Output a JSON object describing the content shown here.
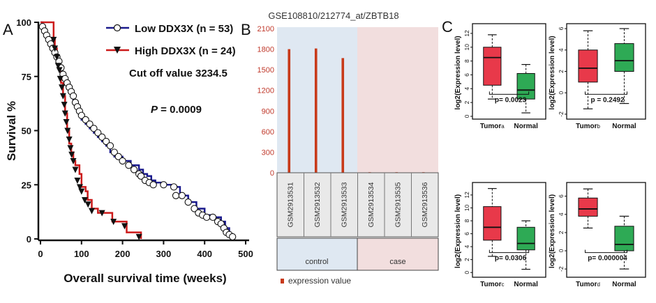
{
  "chart_data": [
    {
      "type": "line",
      "panel_label": "A",
      "title": "",
      "xlabel": "Overall survival time (weeks)",
      "ylabel": "Survival %",
      "xlim": [
        0,
        500
      ],
      "ylim": [
        0,
        100
      ],
      "x_ticks": [
        "0",
        "100",
        "200",
        "300",
        "400",
        "500"
      ],
      "y_ticks": [
        "0",
        "25",
        "50",
        "75",
        "100"
      ],
      "legend": [
        {
          "name": "Low  DDX3X (n = 53)",
          "color": "#1a1a8c",
          "marker": "open-circle"
        },
        {
          "name": "High  DDX3X (n = 24)",
          "color": "#cc1a1a",
          "marker": "down-triangle"
        }
      ],
      "annotations": {
        "cutoff": "Cut off value 3234.5",
        "p_label": "P",
        "p_value": " = 0.0009"
      },
      "series": [
        {
          "name": "Low DDX3X",
          "steps": [
            [
              0,
              100
            ],
            [
              5,
              98
            ],
            [
              10,
              96
            ],
            [
              15,
              94
            ],
            [
              20,
              92
            ],
            [
              25,
              90
            ],
            [
              30,
              88
            ],
            [
              35,
              86
            ],
            [
              40,
              84
            ],
            [
              45,
              80
            ],
            [
              50,
              76
            ],
            [
              55,
              74
            ],
            [
              60,
              72
            ],
            [
              65,
              70
            ],
            [
              70,
              68
            ],
            [
              75,
              66
            ],
            [
              80,
              63
            ],
            [
              85,
              61
            ],
            [
              90,
              59
            ],
            [
              95,
              57
            ],
            [
              100,
              55
            ],
            [
              110,
              53
            ],
            [
              120,
              51
            ],
            [
              130,
              49
            ],
            [
              140,
              47
            ],
            [
              150,
              45
            ],
            [
              160,
              43
            ],
            [
              170,
              40
            ],
            [
              180,
              38
            ],
            [
              200,
              36
            ],
            [
              220,
              34
            ],
            [
              240,
              32
            ],
            [
              250,
              30
            ],
            [
              260,
              29
            ],
            [
              270,
              27
            ],
            [
              280,
              26
            ],
            [
              300,
              25
            ],
            [
              320,
              24
            ],
            [
              340,
              20
            ],
            [
              360,
              17
            ],
            [
              380,
              14
            ],
            [
              400,
              11
            ],
            [
              420,
              10
            ],
            [
              440,
              8
            ],
            [
              450,
              5
            ],
            [
              460,
              2
            ],
            [
              470,
              0
            ]
          ],
          "markers": [
            [
              5,
              98
            ],
            [
              10,
              96
            ],
            [
              15,
              94
            ],
            [
              20,
              92
            ],
            [
              25,
              90
            ],
            [
              30,
              88
            ],
            [
              35,
              86
            ],
            [
              40,
              84
            ],
            [
              45,
              82
            ],
            [
              50,
              79
            ],
            [
              55,
              76
            ],
            [
              60,
              74
            ],
            [
              65,
              72
            ],
            [
              70,
              70
            ],
            [
              75,
              68
            ],
            [
              80,
              66
            ],
            [
              85,
              63
            ],
            [
              90,
              61
            ],
            [
              95,
              59
            ],
            [
              100,
              57
            ],
            [
              110,
              55
            ],
            [
              120,
              53
            ],
            [
              130,
              51
            ],
            [
              140,
              49
            ],
            [
              150,
              47
            ],
            [
              160,
              45
            ],
            [
              170,
              43
            ],
            [
              180,
              40
            ],
            [
              190,
              38
            ],
            [
              200,
              36
            ],
            [
              215,
              34
            ],
            [
              228,
              32
            ],
            [
              240,
              30
            ],
            [
              245,
              29
            ],
            [
              255,
              27
            ],
            [
              265,
              26
            ],
            [
              275,
              25
            ],
            [
              300,
              25
            ],
            [
              325,
              24
            ],
            [
              330,
              20
            ],
            [
              345,
              20
            ],
            [
              360,
              17
            ],
            [
              375,
              14
            ],
            [
              385,
              12
            ],
            [
              395,
              11
            ],
            [
              405,
              10
            ],
            [
              420,
              10
            ],
            [
              432,
              8
            ],
            [
              440,
              7
            ],
            [
              447,
              5
            ],
            [
              453,
              3
            ],
            [
              460,
              2
            ],
            [
              468,
              1
            ]
          ]
        },
        {
          "name": "High DDX3X",
          "steps": [
            [
              0,
              100
            ],
            [
              30,
              100
            ],
            [
              32,
              92
            ],
            [
              35,
              88
            ],
            [
              40,
              84
            ],
            [
              45,
              80
            ],
            [
              50,
              72
            ],
            [
              55,
              66
            ],
            [
              60,
              58
            ],
            [
              65,
              50
            ],
            [
              70,
              44
            ],
            [
              75,
              40
            ],
            [
              80,
              36
            ],
            [
              85,
              34
            ],
            [
              95,
              30
            ],
            [
              100,
              24
            ],
            [
              110,
              22
            ],
            [
              115,
              18
            ],
            [
              125,
              14
            ],
            [
              140,
              12
            ],
            [
              175,
              8
            ],
            [
              210,
              3
            ],
            [
              240,
              3
            ],
            [
              245,
              0
            ]
          ],
          "markers": [
            [
              32,
              92
            ],
            [
              35,
              88
            ],
            [
              40,
              84
            ],
            [
              43,
              80
            ],
            [
              46,
              78
            ],
            [
              48,
              74
            ],
            [
              52,
              70
            ],
            [
              55,
              66
            ],
            [
              58,
              62
            ],
            [
              60,
              58
            ],
            [
              63,
              54
            ],
            [
              66,
              50
            ],
            [
              70,
              46
            ],
            [
              73,
              42
            ],
            [
              76,
              39
            ],
            [
              80,
              36
            ],
            [
              85,
              32
            ],
            [
              90,
              27
            ],
            [
              96,
              24
            ],
            [
              100,
              22
            ],
            [
              108,
              18
            ],
            [
              116,
              16
            ],
            [
              125,
              13
            ],
            [
              150,
              12
            ],
            [
              178,
              8
            ],
            [
              205,
              6
            ],
            [
              240,
              1
            ]
          ]
        }
      ]
    },
    {
      "type": "bar",
      "panel_label": "B",
      "title": "GSE108810/212774_at/ZBTB18",
      "y_ticks": [
        "0",
        "300",
        "600",
        "900",
        "1200",
        "1500",
        "1800",
        "2100"
      ],
      "ylim": [
        0,
        2100
      ],
      "categories": [
        "GSM2913531",
        "GSM2913532",
        "GSM2913533",
        "GSM2913534",
        "GSM2913535",
        "GSM2913536"
      ],
      "values": [
        1800,
        1810,
        1670,
        8,
        8,
        8
      ],
      "groups": [
        {
          "name": "control",
          "count": 3,
          "color": "#dfe8f2"
        },
        {
          "name": "case",
          "count": 3,
          "color": "#f2dede"
        }
      ],
      "bar_color": "#c83a1a",
      "legend": "expression value"
    },
    {
      "type": "box",
      "panel_label": "C",
      "ylabel": "log2(Expression level)",
      "panels": [
        {
          "categories": [
            "Tumor",
            "Normal"
          ],
          "subscript": "a",
          "p_label": "p= 0.0023",
          "ylim": [
            0,
            13
          ],
          "y_ticks": [
            "0",
            "2",
            "4",
            "6",
            "8",
            "10",
            "12"
          ],
          "boxes": [
            {
              "min": 2.5,
              "q1": 4.5,
              "median": 8.5,
              "q3": 10,
              "max": 11.8,
              "color": "#e8394a"
            },
            {
              "min": 0.5,
              "q1": 2.5,
              "median": 3.8,
              "q3": 6.2,
              "max": 7.5,
              "color": "#2eaa55"
            }
          ]
        },
        {
          "categories": [
            "Tumor",
            "Normal"
          ],
          "subscript": "b",
          "p_label": "p = 0.2492",
          "ylim": [
            -2.2,
            6.2
          ],
          "y_ticks": [
            "-2",
            "0",
            "2",
            "4",
            "6"
          ],
          "boxes": [
            {
              "min": -1.5,
              "q1": 1,
              "median": 2.3,
              "q3": 4,
              "max": 5.8,
              "color": "#e8394a"
            },
            {
              "min": -1,
              "q1": 2,
              "median": 3,
              "q3": 4.6,
              "max": 6,
              "color": "#2eaa55"
            }
          ]
        },
        {
          "categories": [
            "Tumor",
            "Normal"
          ],
          "subscript": "c",
          "p_label": "p= 0.0306",
          "ylim": [
            -0.3,
            13.5
          ],
          "y_ticks": [
            "0",
            "2",
            "4",
            "6",
            "8",
            "10",
            "12"
          ],
          "boxes": [
            {
              "min": 2.5,
              "q1": 5,
              "median": 7,
              "q3": 10.2,
              "max": 13,
              "color": "#e8394a"
            },
            {
              "min": 0.5,
              "q1": 3.5,
              "median": 4.5,
              "q3": 7,
              "max": 8,
              "color": "#2eaa55"
            }
          ]
        },
        {
          "categories": [
            "Tumor",
            "Normal"
          ],
          "subscript": "d",
          "p_label": "p= 0.000004",
          "ylim": [
            -2.6,
            7.2
          ],
          "y_ticks": [
            "-2",
            "0",
            "2",
            "4",
            "6"
          ],
          "boxes": [
            {
              "min": 2.5,
              "q1": 3.8,
              "median": 4.6,
              "q3": 5.8,
              "max": 6.8,
              "color": "#e8394a"
            },
            {
              "min": -2,
              "q1": 0,
              "median": 0.7,
              "q3": 2.7,
              "max": 3.8,
              "color": "#2eaa55"
            }
          ]
        }
      ]
    }
  ]
}
